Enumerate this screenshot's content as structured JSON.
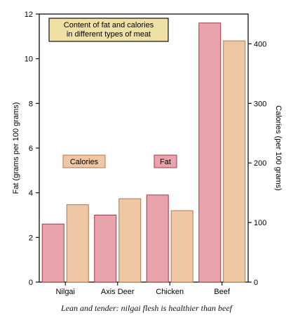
{
  "chart_data": {
    "type": "bar",
    "title": "Content of fat and calories in different types of meat",
    "categories": [
      "Nilgai",
      "Axis Deer",
      "Chicken",
      "Beef"
    ],
    "series": [
      {
        "name": "Fat",
        "axis": "left",
        "values": [
          2.6,
          3.0,
          3.9,
          11.6
        ]
      },
      {
        "name": "Calories",
        "axis": "right",
        "values": [
          130,
          140,
          120,
          405
        ]
      }
    ],
    "ylabel": "Fat (grams per 100 grams)",
    "ylim": [
      0,
      12
    ],
    "yticks": [
      0,
      2,
      4,
      6,
      8,
      10,
      12
    ],
    "y2label": "Calories (per 100 grams)",
    "y2lim": [
      0,
      450
    ],
    "y2ticks": [
      0,
      100,
      200,
      300,
      400
    ],
    "legend": "inside plot, middle",
    "grid": false
  },
  "colors": {
    "fat_fill": "#e8a3ad",
    "fat_stroke": "#a23a4a",
    "calories_fill": "#eec7a4",
    "calories_stroke": "#b07a50",
    "title_box": "#efe1a6",
    "axis": "#111111"
  },
  "caption": "Lean and tender: nilgai flesh is healthier than beef"
}
